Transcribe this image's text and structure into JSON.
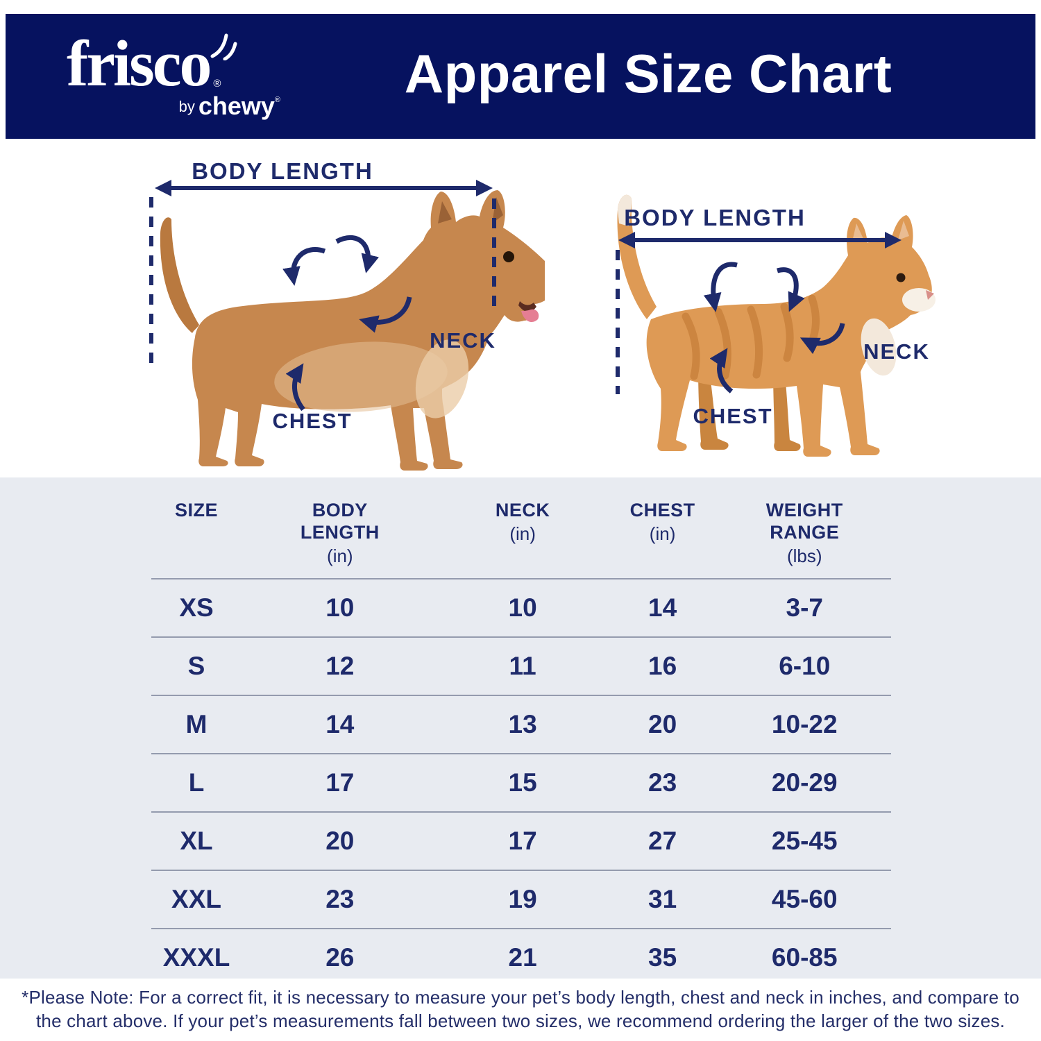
{
  "header": {
    "title": "Apparel Size Chart",
    "logo": {
      "brand": "frisco",
      "brand_reg": "®",
      "by": "by",
      "sub_brand": "chewy",
      "sub_brand_reg": "®"
    }
  },
  "diagram": {
    "dog": {
      "body_length": "BODY LENGTH",
      "neck": "NECK",
      "chest": "CHEST"
    },
    "cat": {
      "body_length": "BODY LENGTH",
      "neck": "NECK",
      "chest": "CHEST"
    }
  },
  "table": {
    "columns": [
      {
        "label": "SIZE",
        "unit": ""
      },
      {
        "label": "BODY\nLENGTH",
        "unit": "(in)"
      },
      {
        "label": "NECK",
        "unit": "(in)"
      },
      {
        "label": "CHEST",
        "unit": "(in)"
      },
      {
        "label": "WEIGHT\nRANGE",
        "unit": "(lbs)"
      }
    ],
    "rows": [
      [
        "XS",
        "10",
        "10",
        "14",
        "3-7"
      ],
      [
        "S",
        "12",
        "11",
        "16",
        "6-10"
      ],
      [
        "M",
        "14",
        "13",
        "20",
        "10-22"
      ],
      [
        "L",
        "17",
        "15",
        "23",
        "20-29"
      ],
      [
        "XL",
        "20",
        "17",
        "27",
        "25-45"
      ],
      [
        "XXL",
        "23",
        "19",
        "31",
        "45-60"
      ],
      [
        "XXXL",
        "26",
        "21",
        "35",
        "60-85"
      ]
    ]
  },
  "footnote": {
    "text": "*Please Note: For a correct fit, it is necessary to measure your pet’s body length, chest and neck in inches, and compare to\nthe chart above. If your pet’s measurements fall between two sizes, we recommend ordering the larger of the two sizes."
  },
  "colors": {
    "navy": "#06125F",
    "ink": "#1E2A6B",
    "table_bg": "#E8EBF1"
  }
}
